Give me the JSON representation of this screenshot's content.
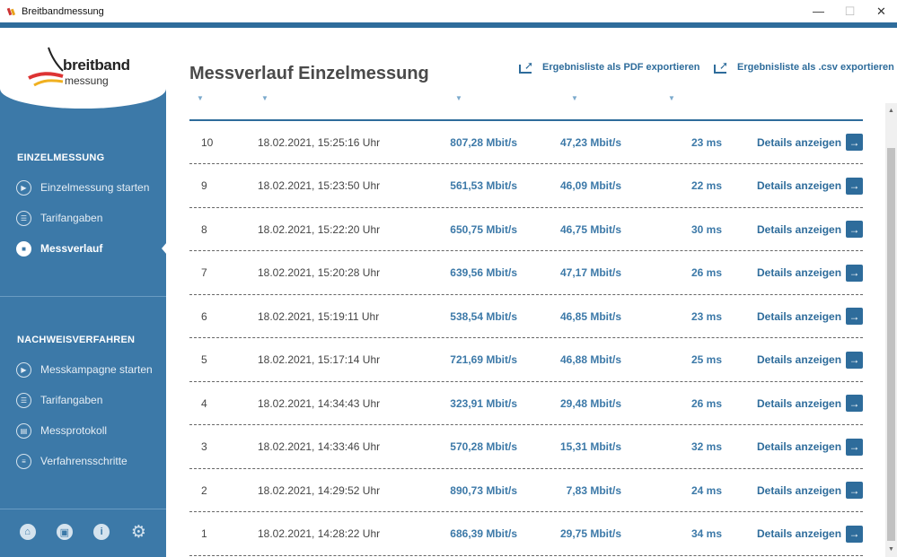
{
  "window": {
    "title": "Breitbandmessung",
    "minimize": "—",
    "maximize": "☐",
    "close": "✕"
  },
  "logo": {
    "line1": "breitband",
    "line2": "messung"
  },
  "sidebar": {
    "section1_title": "EINZELMESSUNG",
    "section1_items": [
      {
        "label": "Einzelmessung starten",
        "icon": "play-circle-icon",
        "active": false
      },
      {
        "label": "Tarifangaben",
        "icon": "user-card-icon",
        "active": false
      },
      {
        "label": "Messverlauf",
        "icon": "history-icon",
        "active": true
      }
    ],
    "section2_title": "NACHWEISVERFAHREN",
    "section2_items": [
      {
        "label": "Messkampagne starten",
        "icon": "play-circle-icon"
      },
      {
        "label": "Tarifangaben",
        "icon": "user-card-icon"
      },
      {
        "label": "Messprotokoll",
        "icon": "protocol-icon"
      },
      {
        "label": "Verfahrensschritte",
        "icon": "list-icon"
      }
    ],
    "footer_icons": [
      "home-icon",
      "store-icon",
      "info-icon",
      "gear-icon"
    ]
  },
  "main": {
    "title": "Messverlauf Einzelmessung",
    "export_pdf": "Ergebnisliste als PDF exportieren",
    "export_csv": "Ergebnisliste als .csv exportieren",
    "details_label": "Details anzeigen",
    "rows": [
      {
        "nr": "10",
        "date": "18.02.2021, 15:25:16 Uhr",
        "down": "807,28 Mbit/s",
        "up": "47,23 Mbit/s",
        "ping": "23 ms"
      },
      {
        "nr": "9",
        "date": "18.02.2021, 15:23:50 Uhr",
        "down": "561,53 Mbit/s",
        "up": "46,09 Mbit/s",
        "ping": "22 ms"
      },
      {
        "nr": "8",
        "date": "18.02.2021, 15:22:20 Uhr",
        "down": "650,75 Mbit/s",
        "up": "46,75 Mbit/s",
        "ping": "30 ms"
      },
      {
        "nr": "7",
        "date": "18.02.2021, 15:20:28 Uhr",
        "down": "639,56 Mbit/s",
        "up": "47,17 Mbit/s",
        "ping": "26 ms"
      },
      {
        "nr": "6",
        "date": "18.02.2021, 15:19:11 Uhr",
        "down": "538,54 Mbit/s",
        "up": "46,85 Mbit/s",
        "ping": "23 ms"
      },
      {
        "nr": "5",
        "date": "18.02.2021, 15:17:14 Uhr",
        "down": "721,69 Mbit/s",
        "up": "46,88 Mbit/s",
        "ping": "25 ms"
      },
      {
        "nr": "4",
        "date": "18.02.2021, 14:34:43 Uhr",
        "down": "323,91 Mbit/s",
        "up": "29,48 Mbit/s",
        "ping": "26 ms"
      },
      {
        "nr": "3",
        "date": "18.02.2021, 14:33:46 Uhr",
        "down": "570,28 Mbit/s",
        "up": "15,31 Mbit/s",
        "ping": "32 ms"
      },
      {
        "nr": "2",
        "date": "18.02.2021, 14:29:52 Uhr",
        "down": "890,73 Mbit/s",
        "up": "7,83 Mbit/s",
        "ping": "24 ms"
      },
      {
        "nr": "1",
        "date": "18.02.2021, 14:28:22 Uhr",
        "down": "686,39 Mbit/s",
        "up": "29,75 Mbit/s",
        "ping": "34 ms"
      }
    ]
  },
  "colors": {
    "sidebar": "#3c79a8",
    "accent": "#2e6c9b",
    "value": "#3c79a8"
  }
}
